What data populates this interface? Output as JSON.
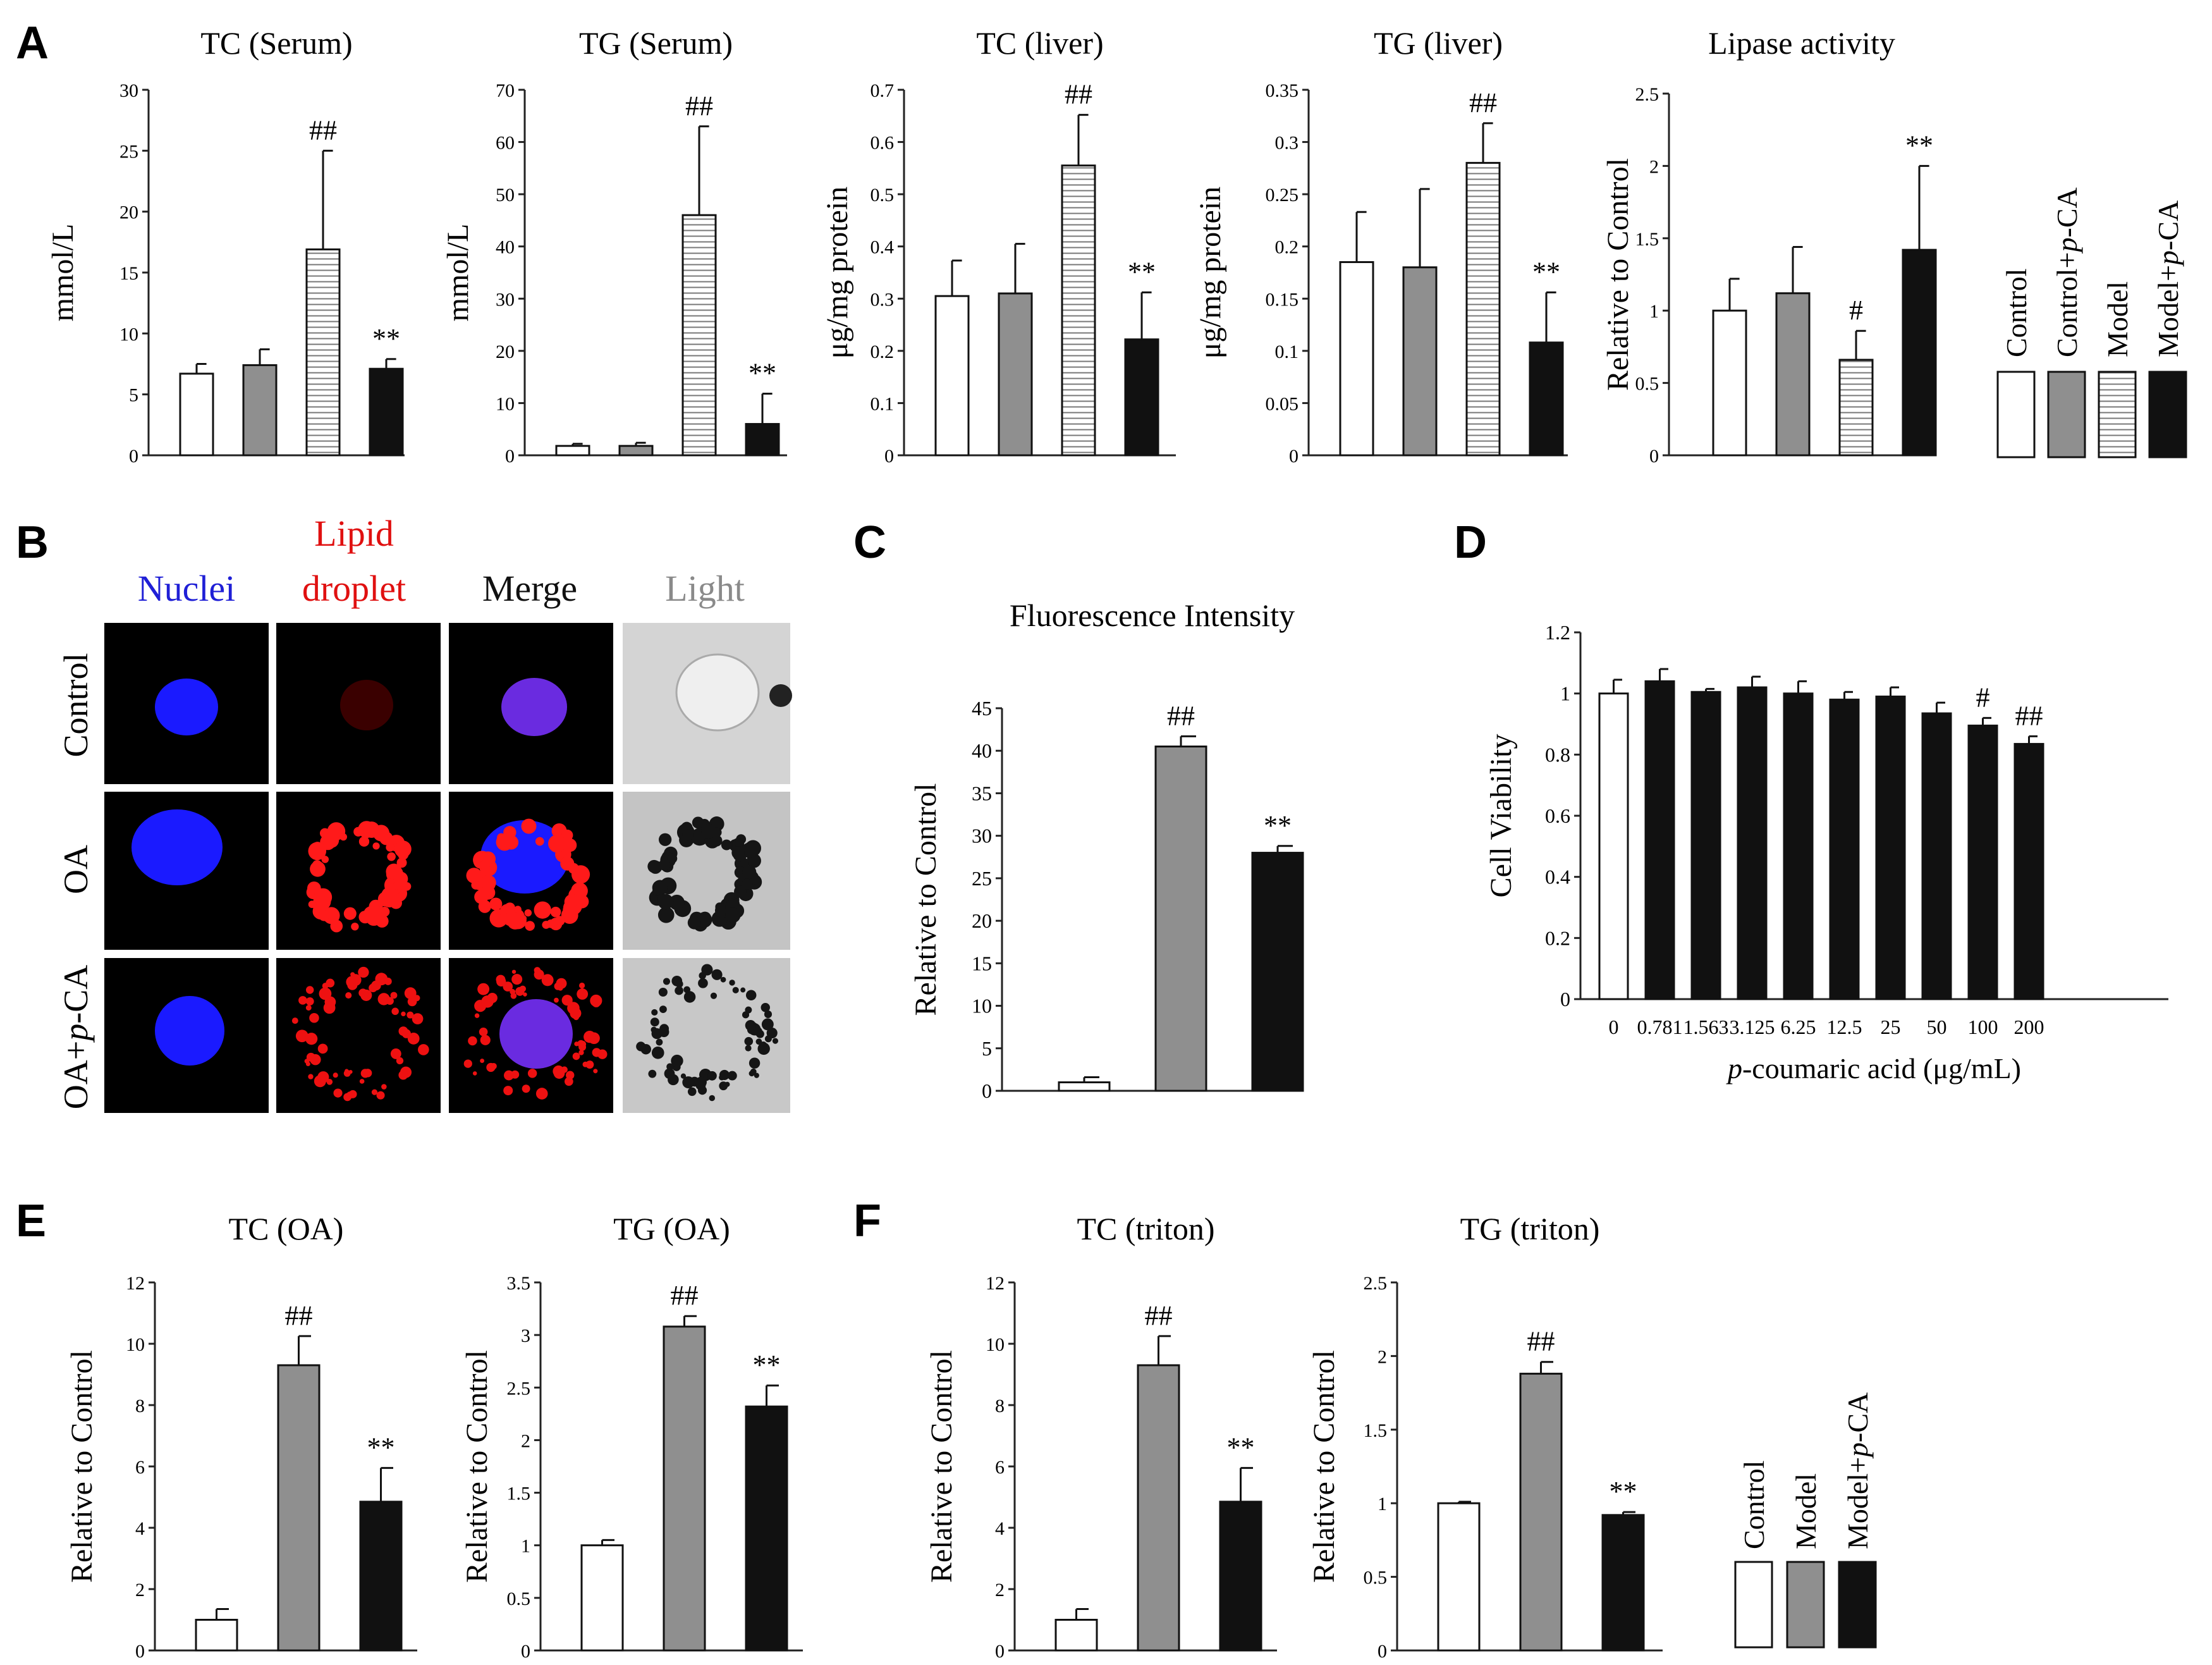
{
  "colors": {
    "control": "#ffffff",
    "control_pca": "#9a9a9a",
    "model_gray": "#8c8c8c",
    "black": "#111111",
    "nuclei_label": "#1f1fd6",
    "lipid_label": "#e01010",
    "light_label": "#8a8a8a"
  },
  "panel_labels": {
    "A": "A",
    "B": "B",
    "C": "C",
    "D": "D",
    "E": "E",
    "F": "F"
  },
  "panelB": {
    "col_nuclei": "Nuclei",
    "col_lipid_1": "Lipid",
    "col_lipid_2": "droplet",
    "col_merge": "Merge",
    "col_light": "Light",
    "row_control": "Control",
    "row_oa": "OA",
    "row_oapca_prefix": "OA+",
    "row_oapca_italic": "p",
    "row_oapca_suffix": "-CA"
  },
  "legendA": [
    {
      "text": "Control",
      "italic": "",
      "suffix": "",
      "fill": "white"
    },
    {
      "text": "Control+",
      "italic": "p",
      "suffix": "-CA",
      "fill": "gray"
    },
    {
      "text": "Model",
      "italic": "",
      "suffix": "",
      "fill": "hatch"
    },
    {
      "text": "Model+",
      "italic": "p",
      "suffix": "-CA",
      "fill": "black"
    }
  ],
  "legendF": [
    {
      "text": "Control",
      "italic": "",
      "suffix": "",
      "fill": "white"
    },
    {
      "text": "Model",
      "italic": "",
      "suffix": "",
      "fill": "gray"
    },
    {
      "text": "Model+",
      "italic": "p",
      "suffix": "-CA",
      "fill": "black"
    }
  ],
  "chart_data": [
    {
      "id": "tc_serum",
      "type": "bar",
      "title": "TC (Serum)",
      "ylabel": "mmol/L",
      "ylim": [
        0,
        30
      ],
      "ticks": [
        0,
        5,
        10,
        15,
        20,
        25,
        30
      ],
      "categories": [
        "Control",
        "Control+p-CA",
        "Model",
        "Model+p-CA"
      ],
      "fills": [
        "white",
        "gray",
        "hatch",
        "black"
      ],
      "values": [
        6.7,
        7.4,
        16.9,
        7.1
      ],
      "errors": [
        0.8,
        1.3,
        8.1,
        0.8
      ],
      "annotations": [
        "",
        "",
        "##",
        "**"
      ]
    },
    {
      "id": "tg_serum",
      "type": "bar",
      "title": "TG (Serum)",
      "ylabel": "mmol/L",
      "ylim": [
        0,
        70
      ],
      "ticks": [
        0,
        10,
        20,
        30,
        40,
        50,
        60,
        70
      ],
      "categories": [
        "Control",
        "Control+p-CA",
        "Model",
        "Model+p-CA"
      ],
      "fills": [
        "white",
        "gray",
        "hatch",
        "black"
      ],
      "values": [
        1.8,
        1.8,
        46,
        6
      ],
      "errors": [
        0.4,
        0.6,
        17,
        5.8
      ],
      "annotations": [
        "",
        "",
        "##",
        "**"
      ]
    },
    {
      "id": "tc_liver",
      "type": "bar",
      "title": "TC (liver)",
      "ylabel": "μg/mg protein",
      "ylim": [
        0,
        0.7
      ],
      "ticks": [
        0,
        0.1,
        0.2,
        0.3,
        0.4,
        0.5,
        0.6,
        0.7
      ],
      "categories": [
        "Control",
        "Control+p-CA",
        "Model",
        "Model+p-CA"
      ],
      "fills": [
        "white",
        "gray",
        "hatch",
        "black"
      ],
      "values": [
        0.305,
        0.31,
        0.555,
        0.222
      ],
      "errors": [
        0.068,
        0.095,
        0.097,
        0.09
      ],
      "annotations": [
        "",
        "",
        "##",
        "**"
      ]
    },
    {
      "id": "tg_liver",
      "type": "bar",
      "title": "TG (liver)",
      "ylabel": "μg/mg protein",
      "ylim": [
        0,
        0.35
      ],
      "ticks": [
        0,
        0.05,
        0.1,
        0.15,
        0.2,
        0.25,
        0.3,
        0.35
      ],
      "categories": [
        "Control",
        "Control+p-CA",
        "Model",
        "Model+p-CA"
      ],
      "fills": [
        "white",
        "gray",
        "hatch",
        "black"
      ],
      "values": [
        0.185,
        0.18,
        0.28,
        0.108
      ],
      "errors": [
        0.048,
        0.075,
        0.038,
        0.048
      ],
      "annotations": [
        "",
        "",
        "##",
        "**"
      ]
    },
    {
      "id": "lipase",
      "type": "bar",
      "title": "Lipase activity",
      "ylabel": "Relative to Control",
      "ylim": [
        0,
        2.5
      ],
      "ticks": [
        0,
        0.5,
        1,
        1.5,
        2,
        2.5
      ],
      "categories": [
        "Control",
        "Control+p-CA",
        "Model",
        "Model+p-CA"
      ],
      "fills": [
        "white",
        "gray",
        "hatch",
        "black"
      ],
      "values": [
        1.0,
        1.12,
        0.66,
        1.42
      ],
      "errors": [
        0.22,
        0.32,
        0.2,
        0.58
      ],
      "annotations": [
        "",
        "",
        "#",
        "**"
      ]
    },
    {
      "id": "fluor",
      "type": "bar",
      "title": "Fluorescence Intensity",
      "ylabel": "Relative to Control",
      "ylim": [
        0,
        45
      ],
      "ticks": [
        0,
        5,
        10,
        15,
        20,
        25,
        30,
        35,
        40,
        45
      ],
      "categories": [
        "Control",
        "OA",
        "OA+p-CA"
      ],
      "fills": [
        "white",
        "gray",
        "black"
      ],
      "values": [
        1,
        40.5,
        28
      ],
      "errors": [
        0.6,
        1.2,
        0.8
      ],
      "annotations": [
        "",
        "##",
        "**"
      ]
    },
    {
      "id": "viability",
      "type": "bar",
      "title": "",
      "ylabel": "Cell Viability",
      "xlabel_prefix": "p",
      "xlabel_suffix": "-coumaric acid (μg/mL)",
      "ylim": [
        0,
        1.2
      ],
      "ticks": [
        0,
        0.2,
        0.4,
        0.6,
        0.8,
        1,
        1.2
      ],
      "categories": [
        "0",
        "0.781",
        "1.563",
        "3.125",
        "6.25",
        "12.5",
        "25",
        "50",
        "100",
        "200"
      ],
      "fills": [
        "white",
        "black",
        "black",
        "black",
        "black",
        "black",
        "black",
        "black",
        "black",
        "black"
      ],
      "values": [
        1.0,
        1.04,
        1.005,
        1.02,
        1.0,
        0.98,
        0.99,
        0.935,
        0.895,
        0.835
      ],
      "errors": [
        0.045,
        0.04,
        0.01,
        0.035,
        0.04,
        0.025,
        0.03,
        0.035,
        0.025,
        0.025
      ],
      "annotations": [
        "",
        "",
        "",
        "",
        "",
        "",
        "",
        "",
        "#",
        "##"
      ]
    },
    {
      "id": "tc_oa",
      "type": "bar",
      "title": "TC (OA)",
      "ylabel": "Relative to Control",
      "ylim": [
        0,
        12
      ],
      "ticks": [
        0,
        2,
        4,
        6,
        8,
        10,
        12
      ],
      "categories": [
        "Control",
        "Model",
        "Model+p-CA"
      ],
      "fills": [
        "white",
        "gray",
        "black"
      ],
      "values": [
        1.0,
        9.3,
        4.85
      ],
      "errors": [
        0.35,
        0.95,
        1.1
      ],
      "annotations": [
        "",
        "##",
        "**"
      ]
    },
    {
      "id": "tg_oa",
      "type": "bar",
      "title": "TG (OA)",
      "ylabel": "Relative to Control",
      "ylim": [
        0,
        3.5
      ],
      "ticks": [
        0,
        0.5,
        1,
        1.5,
        2,
        2.5,
        3,
        3.5
      ],
      "categories": [
        "Control",
        "Model",
        "Model+p-CA"
      ],
      "fills": [
        "white",
        "gray",
        "black"
      ],
      "values": [
        1.0,
        3.08,
        2.32
      ],
      "errors": [
        0.05,
        0.1,
        0.2
      ],
      "annotations": [
        "",
        "##",
        "**"
      ]
    },
    {
      "id": "tc_triton",
      "type": "bar",
      "title": "TC (triton)",
      "ylabel": "Relative to Control",
      "ylim": [
        0,
        12
      ],
      "ticks": [
        0,
        2,
        4,
        6,
        8,
        10,
        12
      ],
      "categories": [
        "Control",
        "Model",
        "Model+p-CA"
      ],
      "fills": [
        "white",
        "gray",
        "black"
      ],
      "values": [
        1.0,
        9.3,
        4.85
      ],
      "errors": [
        0.35,
        0.95,
        1.1
      ],
      "annotations": [
        "",
        "##",
        "**"
      ]
    },
    {
      "id": "tg_triton",
      "type": "bar",
      "title": "TG (triton)",
      "ylabel": "Relative to Control",
      "ylim": [
        0,
        2.5
      ],
      "ticks": [
        0,
        0.5,
        1,
        1.5,
        2,
        2.5
      ],
      "categories": [
        "Control",
        "Model",
        "Model+p-CA"
      ],
      "fills": [
        "white",
        "gray",
        "black"
      ],
      "values": [
        1.0,
        1.88,
        0.92
      ],
      "errors": [
        0.01,
        0.08,
        0.02
      ],
      "annotations": [
        "",
        "##",
        "**"
      ]
    }
  ]
}
